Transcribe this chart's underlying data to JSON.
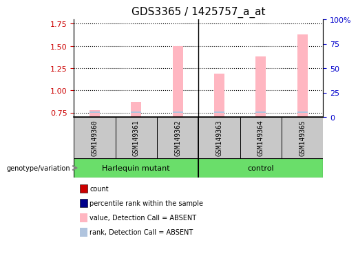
{
  "title": "GDS3365 / 1425757_a_at",
  "samples": [
    "GSM149360",
    "GSM149361",
    "GSM149362",
    "GSM149363",
    "GSM149364",
    "GSM149365"
  ],
  "group_labels": [
    "Harlequin mutant",
    "control"
  ],
  "pink_values": [
    0.78,
    0.87,
    1.5,
    1.19,
    1.38,
    1.63
  ],
  "blue_bar_height": 0.012,
  "blue_bar_bottom": 0.748,
  "ylim_left": [
    0.7,
    1.8
  ],
  "ylim_right": [
    0,
    100
  ],
  "yticks_left": [
    0.75,
    1.0,
    1.25,
    1.5,
    1.75
  ],
  "yticks_right": [
    0,
    25,
    50,
    75,
    100
  ],
  "ytick_labels_right": [
    "0",
    "25",
    "50",
    "75",
    "100%"
  ],
  "dotted_lines_left": [
    0.75,
    1.0,
    1.25,
    1.5,
    1.75
  ],
  "pink_bar_width": 0.25,
  "pink_color": "#FFB6C1",
  "blue_color": "#B0C4DE",
  "red_color": "#CC0000",
  "dark_blue_color": "#00008B",
  "title_fontsize": 11,
  "tick_fontsize": 8,
  "left_tick_color": "#CC0000",
  "right_tick_color": "#0000CC",
  "group_split": 3,
  "sample_box_color": "#C8C8C8",
  "group_green_color": "#6ADE6A",
  "geno_label": "genotype/variation",
  "legend_items": [
    {
      "color": "#CC0000",
      "label": "count"
    },
    {
      "color": "#00008B",
      "label": "percentile rank within the sample"
    },
    {
      "color": "#FFB6C1",
      "label": "value, Detection Call = ABSENT"
    },
    {
      "color": "#B0C4DE",
      "label": "rank, Detection Call = ABSENT"
    }
  ]
}
